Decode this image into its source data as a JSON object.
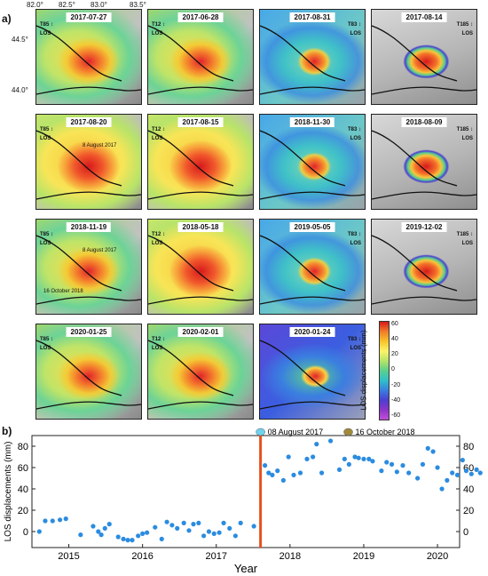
{
  "figure": {
    "panel_a_label": "a)",
    "panel_b_label": "b)",
    "lon_ticks": [
      "82.0°",
      "82.5°",
      "83.0°",
      "83.5°"
    ],
    "lat_ticks": [
      "44.5°",
      "44.0°"
    ],
    "tiles": [
      {
        "date": "2017-07-27",
        "track": "T85",
        "los": "LOS",
        "side": "left",
        "style": "mixed"
      },
      {
        "date": "2017-06-28",
        "track": "T12",
        "los": "LOS",
        "side": "left",
        "style": "mixed"
      },
      {
        "date": "2017-08-31",
        "track": "T83",
        "los": "LOS",
        "side": "right",
        "style": "blue"
      },
      {
        "date": "2017-08-14",
        "track": "T185",
        "los": "LOS",
        "side": "right",
        "style": "gray"
      },
      {
        "date": "2017-08-20",
        "track": "T85",
        "los": "LOS",
        "side": "left",
        "style": "hot",
        "note": "8 August 2017"
      },
      {
        "date": "2017-08-15",
        "track": "T12",
        "los": "LOS",
        "side": "left",
        "style": "hot"
      },
      {
        "date": "2018-11-30",
        "track": "T83",
        "los": "LOS",
        "side": "right",
        "style": "blue"
      },
      {
        "date": "2018-08-09",
        "track": "T185",
        "los": "LOS",
        "side": "right",
        "style": "gray"
      },
      {
        "date": "2018-11-19",
        "track": "T85",
        "los": "LOS",
        "side": "left",
        "style": "mixed",
        "note": "8 August 2017",
        "note2": "16 October 2018"
      },
      {
        "date": "2018-05-18",
        "track": "T12",
        "los": "LOS",
        "side": "left",
        "style": "hot"
      },
      {
        "date": "2019-05-05",
        "track": "T83",
        "los": "LOS",
        "side": "right",
        "style": "blue"
      },
      {
        "date": "2019-12-02",
        "track": "T185",
        "los": "LOS",
        "side": "right",
        "style": "gray"
      },
      {
        "date": "2020-01-25",
        "track": "T85",
        "los": "LOS",
        "side": "left",
        "style": "mixed"
      },
      {
        "date": "2020-02-01",
        "track": "T12",
        "los": "LOS",
        "side": "left",
        "style": "mixed"
      },
      {
        "date": "2020-01-24",
        "track": "T83",
        "los": "LOS",
        "side": "right",
        "style": "purple"
      }
    ],
    "colorbar": {
      "title": "LOS displacements (mm)",
      "ticks": [
        "60",
        "40",
        "20",
        "0",
        "-20",
        "-40",
        "-60"
      ]
    },
    "colors": {
      "series": "#2b8ce0",
      "event_line": "#e8501e",
      "event_aug": "#6fd3ef",
      "event_oct": "#a08a3a"
    }
  },
  "chart_data": {
    "type": "scatter",
    "xlabel": "Year",
    "ylabel": "LOS displacements (mm)",
    "xlim": [
      2014.5,
      2020.3
    ],
    "ylim": [
      -15,
      90
    ],
    "x_ticks": [
      2015,
      2016,
      2017,
      2018,
      2019,
      2020
    ],
    "y_ticks": [
      0,
      20,
      40,
      60,
      80
    ],
    "events": [
      {
        "label": "08 August 2017",
        "x": 2017.6
      },
      {
        "label": "16 October 2018",
        "x": 2018.79
      }
    ],
    "event_line_x": 2017.6,
    "series": [
      {
        "points": [
          [
            2014.6,
            0
          ],
          [
            2014.68,
            10
          ],
          [
            2014.78,
            10
          ],
          [
            2014.88,
            11
          ],
          [
            2014.96,
            12
          ],
          [
            2015.16,
            -3
          ],
          [
            2015.33,
            5
          ],
          [
            2015.4,
            0
          ],
          [
            2015.44,
            -3
          ],
          [
            2015.49,
            3
          ],
          [
            2015.55,
            7
          ],
          [
            2015.67,
            -5
          ],
          [
            2015.74,
            -7
          ],
          [
            2015.8,
            -8
          ],
          [
            2015.86,
            -8
          ],
          [
            2015.94,
            -4
          ],
          [
            2016.0,
            -2
          ],
          [
            2016.06,
            -1
          ],
          [
            2016.17,
            4
          ],
          [
            2016.26,
            -7
          ],
          [
            2016.33,
            9
          ],
          [
            2016.4,
            6
          ],
          [
            2016.47,
            3
          ],
          [
            2016.56,
            8
          ],
          [
            2016.63,
            1
          ],
          [
            2016.69,
            7
          ],
          [
            2016.76,
            8
          ],
          [
            2016.83,
            -4
          ],
          [
            2016.9,
            0
          ],
          [
            2016.97,
            -2
          ],
          [
            2017.04,
            -1
          ],
          [
            2017.1,
            8
          ],
          [
            2017.18,
            3
          ],
          [
            2017.26,
            -4
          ],
          [
            2017.33,
            8
          ],
          [
            2017.51,
            5
          ],
          [
            2017.66,
            62
          ],
          [
            2017.71,
            55
          ],
          [
            2017.76,
            53
          ],
          [
            2017.83,
            57
          ],
          [
            2017.91,
            48
          ],
          [
            2017.98,
            70
          ],
          [
            2018.05,
            53
          ],
          [
            2018.14,
            55
          ],
          [
            2018.23,
            68
          ],
          [
            2018.31,
            70
          ],
          [
            2018.36,
            82
          ],
          [
            2018.43,
            55
          ],
          [
            2018.55,
            85
          ],
          [
            2018.67,
            58
          ],
          [
            2018.74,
            68
          ],
          [
            2018.8,
            63
          ],
          [
            2018.88,
            70
          ],
          [
            2018.93,
            69
          ],
          [
            2019.0,
            68
          ],
          [
            2019.07,
            68
          ],
          [
            2019.12,
            66
          ],
          [
            2019.24,
            57
          ],
          [
            2019.31,
            65
          ],
          [
            2019.38,
            63
          ],
          [
            2019.45,
            56
          ],
          [
            2019.53,
            62
          ],
          [
            2019.61,
            55
          ],
          [
            2019.73,
            50
          ],
          [
            2019.8,
            63
          ],
          [
            2019.87,
            78
          ],
          [
            2019.94,
            75
          ],
          [
            2020.0,
            60
          ],
          [
            2020.06,
            40
          ],
          [
            2020.13,
            48
          ],
          [
            2020.2,
            55
          ],
          [
            2020.27,
            53
          ],
          [
            2020.34,
            67
          ],
          [
            2020.39,
            57
          ],
          [
            2020.46,
            54
          ],
          [
            2020.53,
            58
          ],
          [
            2020.58,
            55
          ]
        ]
      }
    ]
  }
}
